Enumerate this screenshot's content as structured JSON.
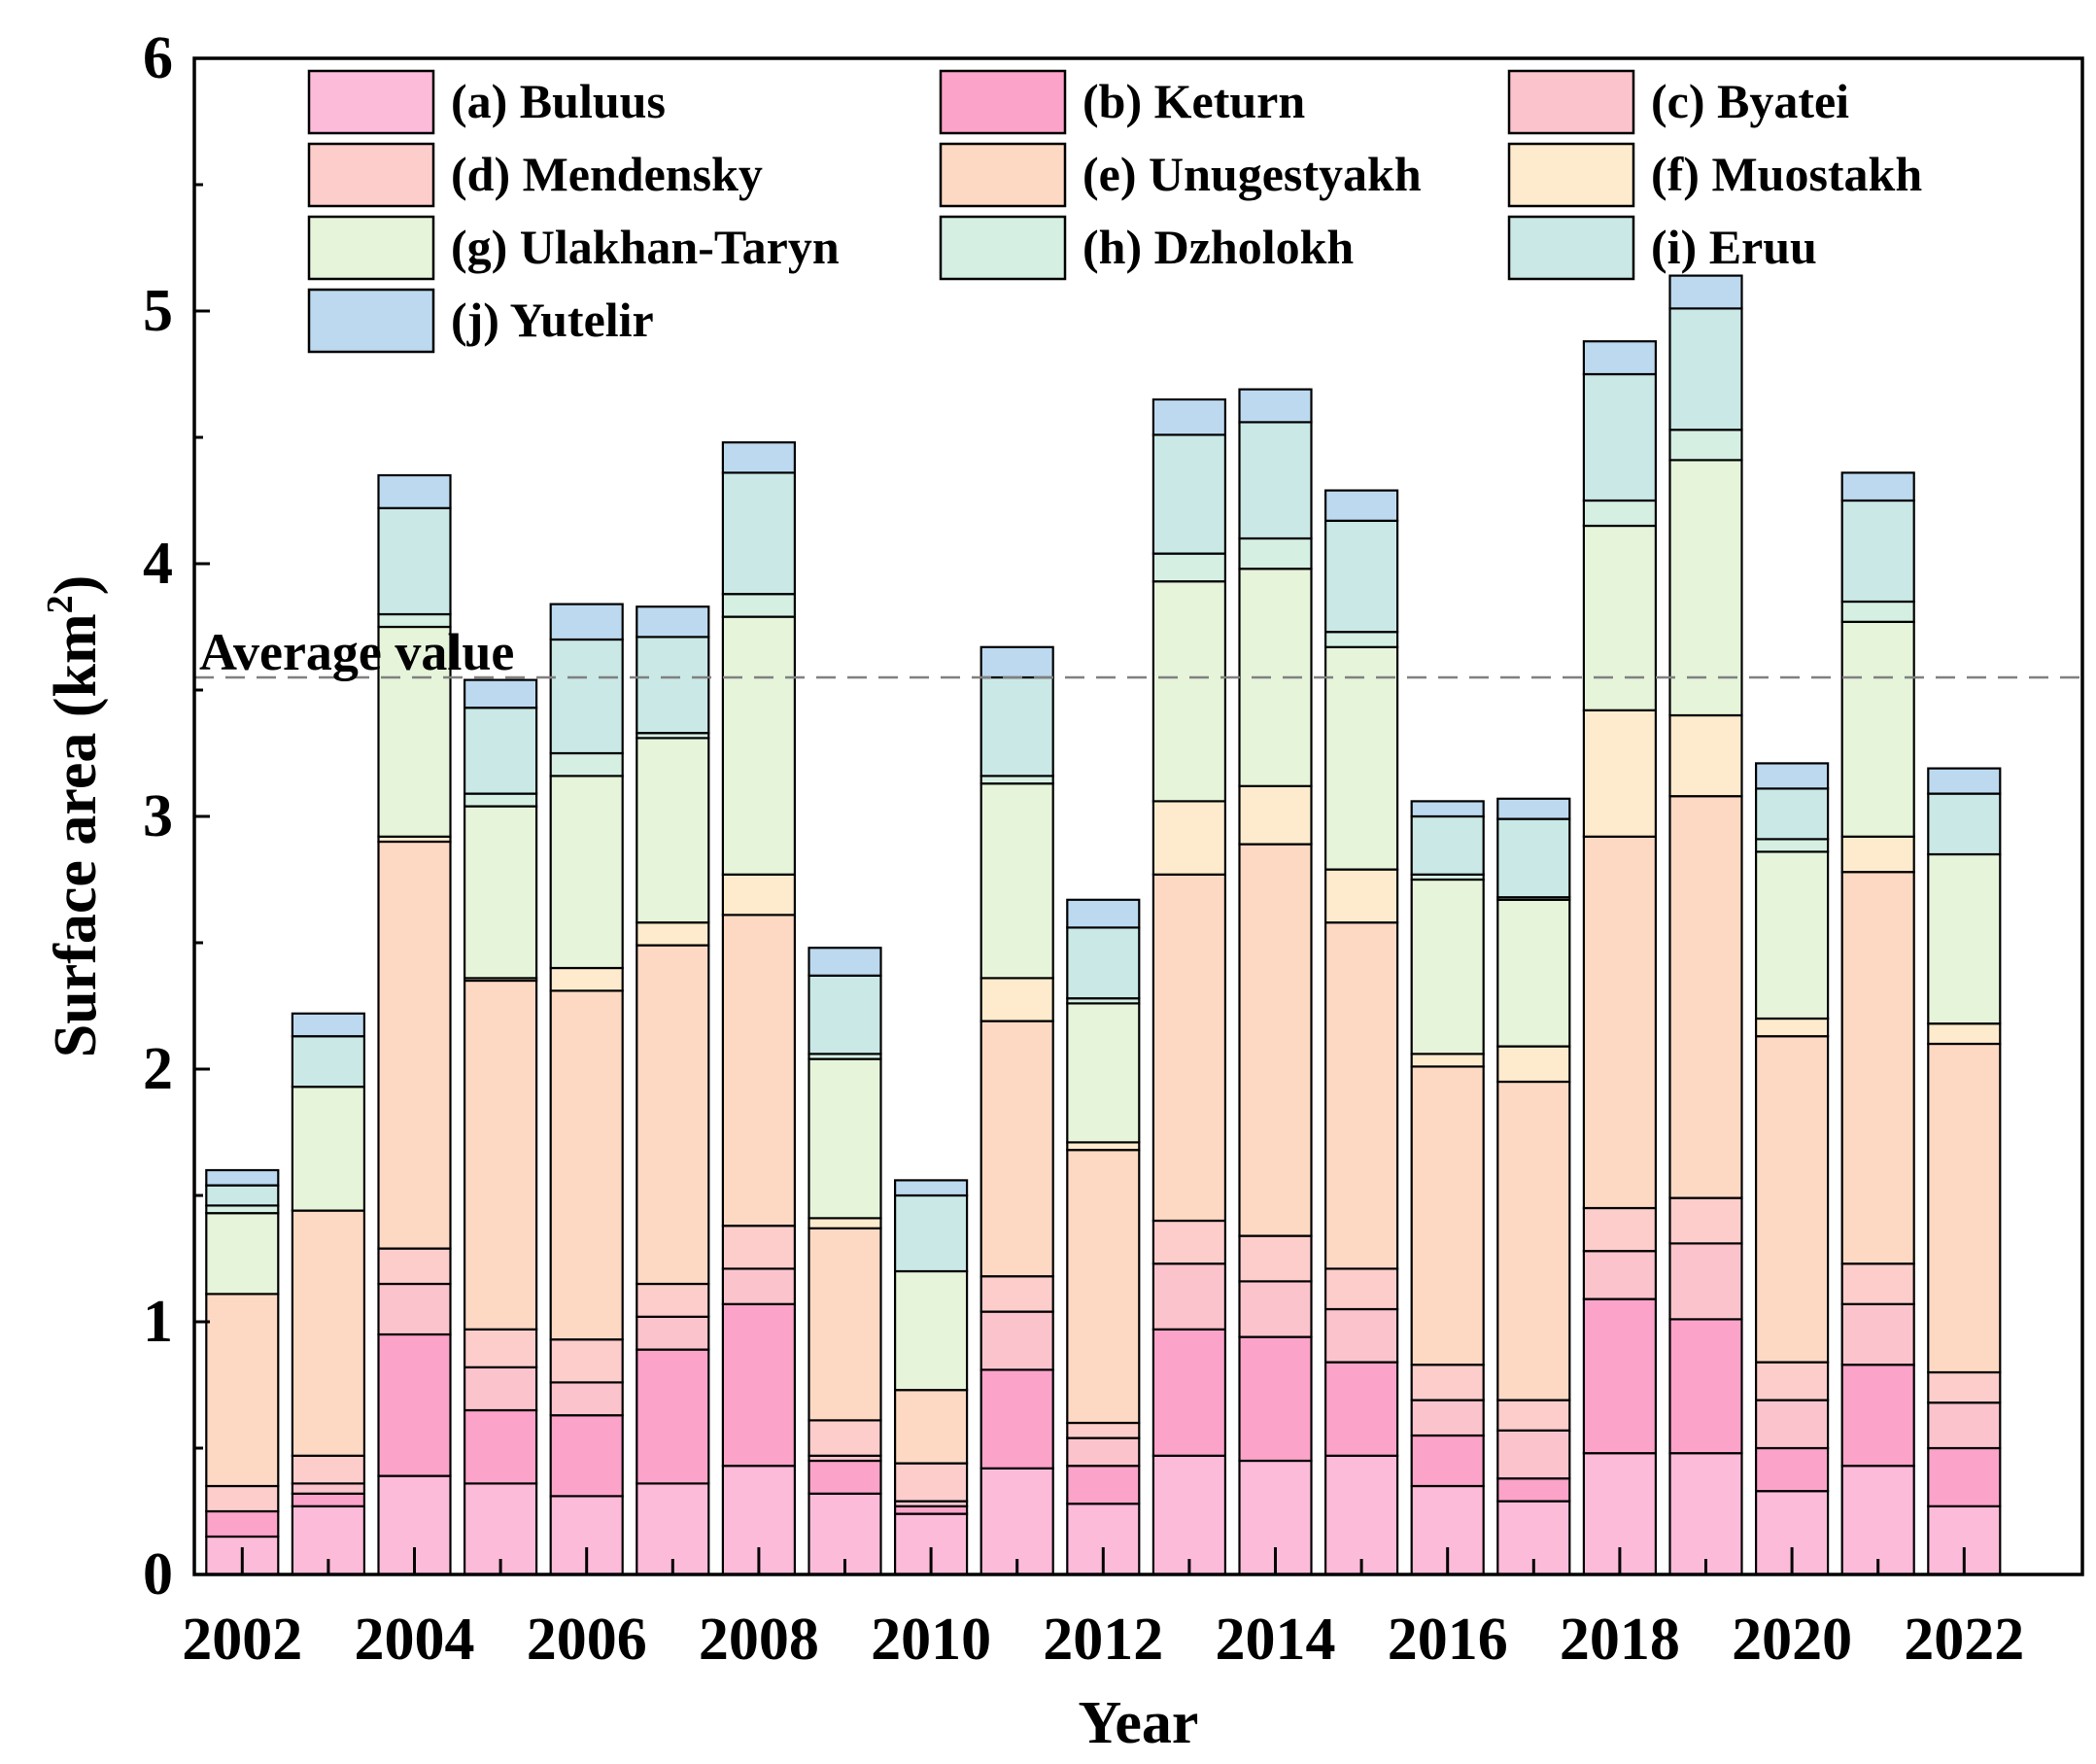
{
  "chart_data": {
    "type": "bar",
    "stacked": true,
    "xlabel": "Year",
    "ylabel": "Surface area (km",
    "ylabel_sup": "2",
    "ylabel_close": ")",
    "ylim": [
      0,
      6
    ],
    "yticks": [
      0,
      1,
      2,
      3,
      4,
      5,
      6
    ],
    "xtick_labels": [
      "2002",
      "2004",
      "2006",
      "2008",
      "2010",
      "2012",
      "2014",
      "2016",
      "2018",
      "2020",
      "2022"
    ],
    "legend_position": "top (inside plot, 3 columns)",
    "average_line": {
      "label": "Average value",
      "value": 3.55,
      "color": "#808080"
    },
    "categories": [
      "2002",
      "2003",
      "2004",
      "2005",
      "2006",
      "2007",
      "2008",
      "2009",
      "2010",
      "2011",
      "2012",
      "2013",
      "2014",
      "2015",
      "2016",
      "2017",
      "2018",
      "2019",
      "2020",
      "2021",
      "2022"
    ],
    "series": [
      {
        "name": "(a) Buluus",
        "color": "#FDBBDA",
        "values": [
          0.15,
          0.27,
          0.39,
          0.36,
          0.31,
          0.36,
          0.43,
          0.32,
          0.24,
          0.42,
          0.28,
          0.47,
          0.45,
          0.47,
          0.35,
          0.29,
          0.48,
          0.48,
          0.33,
          0.43,
          0.27
        ]
      },
      {
        "name": "(b) Keturn",
        "color": "#FCA3CA",
        "values": [
          0.1,
          0.05,
          0.56,
          0.29,
          0.32,
          0.53,
          0.64,
          0.13,
          0.03,
          0.39,
          0.15,
          0.5,
          0.49,
          0.37,
          0.2,
          0.09,
          0.61,
          0.53,
          0.17,
          0.4,
          0.23
        ]
      },
      {
        "name": "(c) Byatei",
        "color": "#FBC4CD",
        "values": [
          0.0,
          0.04,
          0.2,
          0.17,
          0.13,
          0.13,
          0.14,
          0.02,
          0.02,
          0.23,
          0.11,
          0.26,
          0.22,
          0.21,
          0.14,
          0.19,
          0.19,
          0.3,
          0.19,
          0.24,
          0.18
        ]
      },
      {
        "name": "(d) Mendensky",
        "color": "#FCCDCB",
        "values": [
          0.1,
          0.11,
          0.14,
          0.15,
          0.17,
          0.13,
          0.17,
          0.14,
          0.15,
          0.14,
          0.06,
          0.17,
          0.18,
          0.16,
          0.14,
          0.12,
          0.17,
          0.18,
          0.15,
          0.16,
          0.12
        ]
      },
      {
        "name": "(e) Unugestyakh",
        "color": "#FDD9C4",
        "values": [
          0.76,
          0.97,
          1.61,
          1.38,
          1.38,
          1.34,
          1.23,
          0.76,
          0.29,
          1.01,
          1.08,
          1.37,
          1.55,
          1.37,
          1.18,
          1.26,
          1.47,
          1.59,
          1.29,
          1.55,
          1.3
        ]
      },
      {
        "name": "(f) Muostakh",
        "color": "#FEEBCD",
        "values": [
          0.0,
          0.0,
          0.02,
          0.01,
          0.09,
          0.09,
          0.16,
          0.04,
          0.0,
          0.17,
          0.03,
          0.29,
          0.23,
          0.21,
          0.05,
          0.14,
          0.5,
          0.32,
          0.07,
          0.14,
          0.08
        ]
      },
      {
        "name": "(g) Ulakhan-Taryn",
        "color": "#E6F4DA",
        "values": [
          0.32,
          0.49,
          0.83,
          0.68,
          0.76,
          0.73,
          1.02,
          0.63,
          0.47,
          0.77,
          0.55,
          0.87,
          0.86,
          0.88,
          0.69,
          0.58,
          0.73,
          1.01,
          0.66,
          0.85,
          0.67
        ]
      },
      {
        "name": "(h) Dzholokh",
        "color": "#D5EFE3",
        "values": [
          0.03,
          0.0,
          0.05,
          0.05,
          0.09,
          0.02,
          0.09,
          0.02,
          0.0,
          0.03,
          0.02,
          0.11,
          0.12,
          0.06,
          0.02,
          0.01,
          0.1,
          0.12,
          0.05,
          0.08,
          0.0
        ]
      },
      {
        "name": "(i) Eruu",
        "color": "#C9E8E6",
        "values": [
          0.08,
          0.2,
          0.42,
          0.34,
          0.45,
          0.38,
          0.48,
          0.31,
          0.3,
          0.39,
          0.28,
          0.47,
          0.46,
          0.44,
          0.23,
          0.31,
          0.5,
          0.48,
          0.2,
          0.4,
          0.24
        ]
      },
      {
        "name": "(j) Yutelir",
        "color": "#BCD9EF",
        "values": [
          0.06,
          0.09,
          0.13,
          0.11,
          0.14,
          0.12,
          0.12,
          0.11,
          0.06,
          0.12,
          0.11,
          0.14,
          0.13,
          0.12,
          0.06,
          0.08,
          0.13,
          0.13,
          0.1,
          0.11,
          0.1
        ]
      }
    ]
  }
}
